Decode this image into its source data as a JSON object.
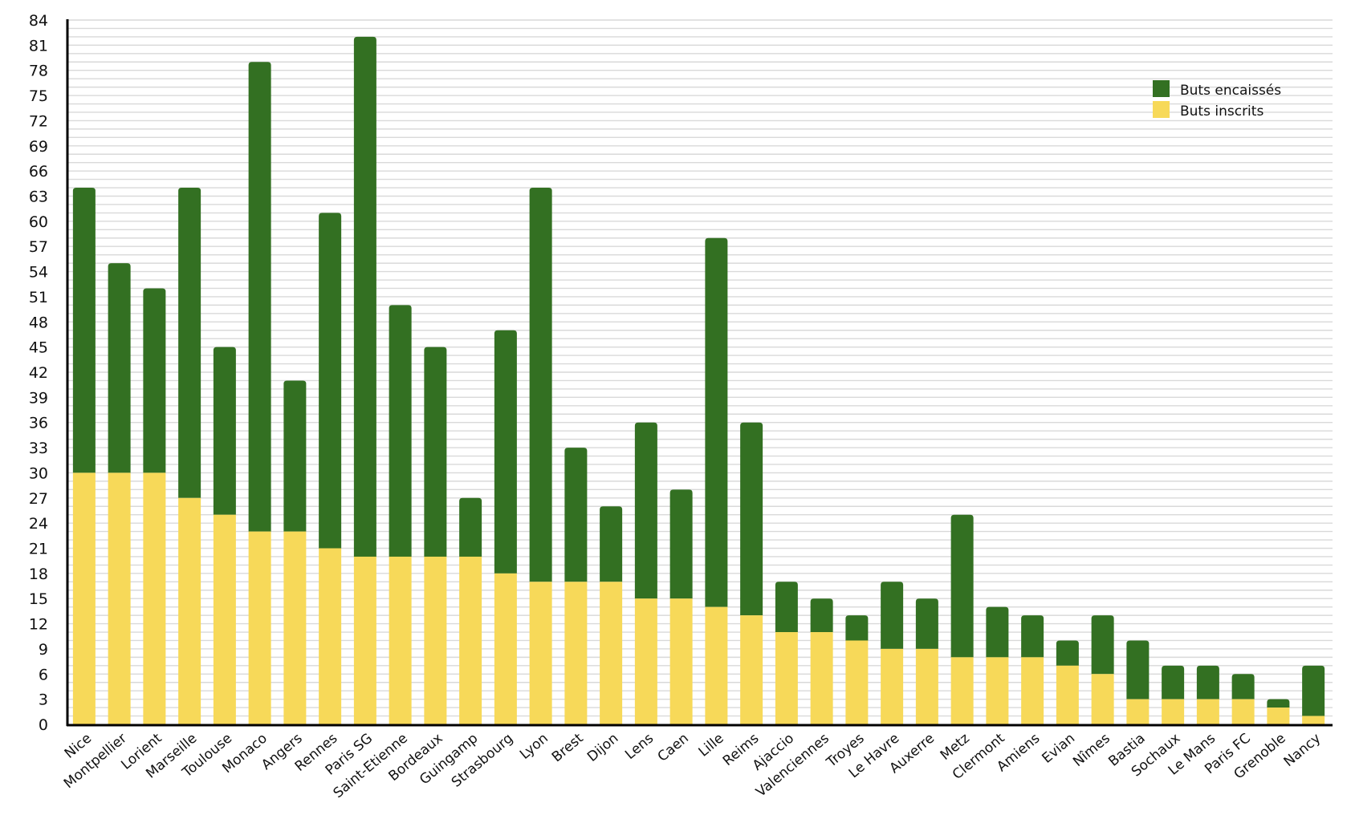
{
  "chart_data": {
    "type": "bar",
    "stacked": true,
    "title": "",
    "xlabel": "",
    "ylabel": "",
    "ylim": [
      0,
      84
    ],
    "ytick_step": 3,
    "grid": "horizontal minor lines every 1 unit",
    "legend_position": "top-right",
    "categories": [
      "Nice",
      "Montpellier",
      "Lorient",
      "Marseille",
      "Toulouse",
      "Monaco",
      "Angers",
      "Rennes",
      "Paris SG",
      "Saint-Etienne",
      "Bordeaux",
      "Guingamp",
      "Strasbourg",
      "Lyon",
      "Brest",
      "Dijon",
      "Lens",
      "Caen",
      "Lille",
      "Reims",
      "Ajaccio",
      "Valenciennes",
      "Troyes",
      "Le Havre",
      "Auxerre",
      "Metz",
      "Clermont",
      "Amiens",
      "Evian",
      "Nîmes",
      "Bastia",
      "Sochaux",
      "Le Mans",
      "Paris FC",
      "Grenoble",
      "Nancy"
    ],
    "series": [
      {
        "name": "Buts inscrits",
        "color": "#f7d959",
        "values": [
          30,
          30,
          30,
          27,
          25,
          23,
          23,
          21,
          20,
          20,
          20,
          20,
          18,
          17,
          17,
          17,
          15,
          15,
          14,
          13,
          11,
          11,
          10,
          9,
          9,
          8,
          8,
          8,
          7,
          6,
          3,
          3,
          3,
          3,
          2,
          1
        ]
      },
      {
        "name": "Buts encaissés",
        "color": "#337022",
        "values": [
          34,
          25,
          22,
          37,
          20,
          56,
          18,
          40,
          62,
          30,
          25,
          7,
          29,
          47,
          16,
          9,
          21,
          13,
          44,
          23,
          6,
          4,
          3,
          8,
          6,
          17,
          6,
          5,
          3,
          7,
          7,
          4,
          4,
          3,
          1,
          6
        ]
      }
    ],
    "legend": [
      {
        "label": "Buts encaissés",
        "color": "#337022"
      },
      {
        "label": "Buts inscrits",
        "color": "#f7d959"
      }
    ]
  }
}
